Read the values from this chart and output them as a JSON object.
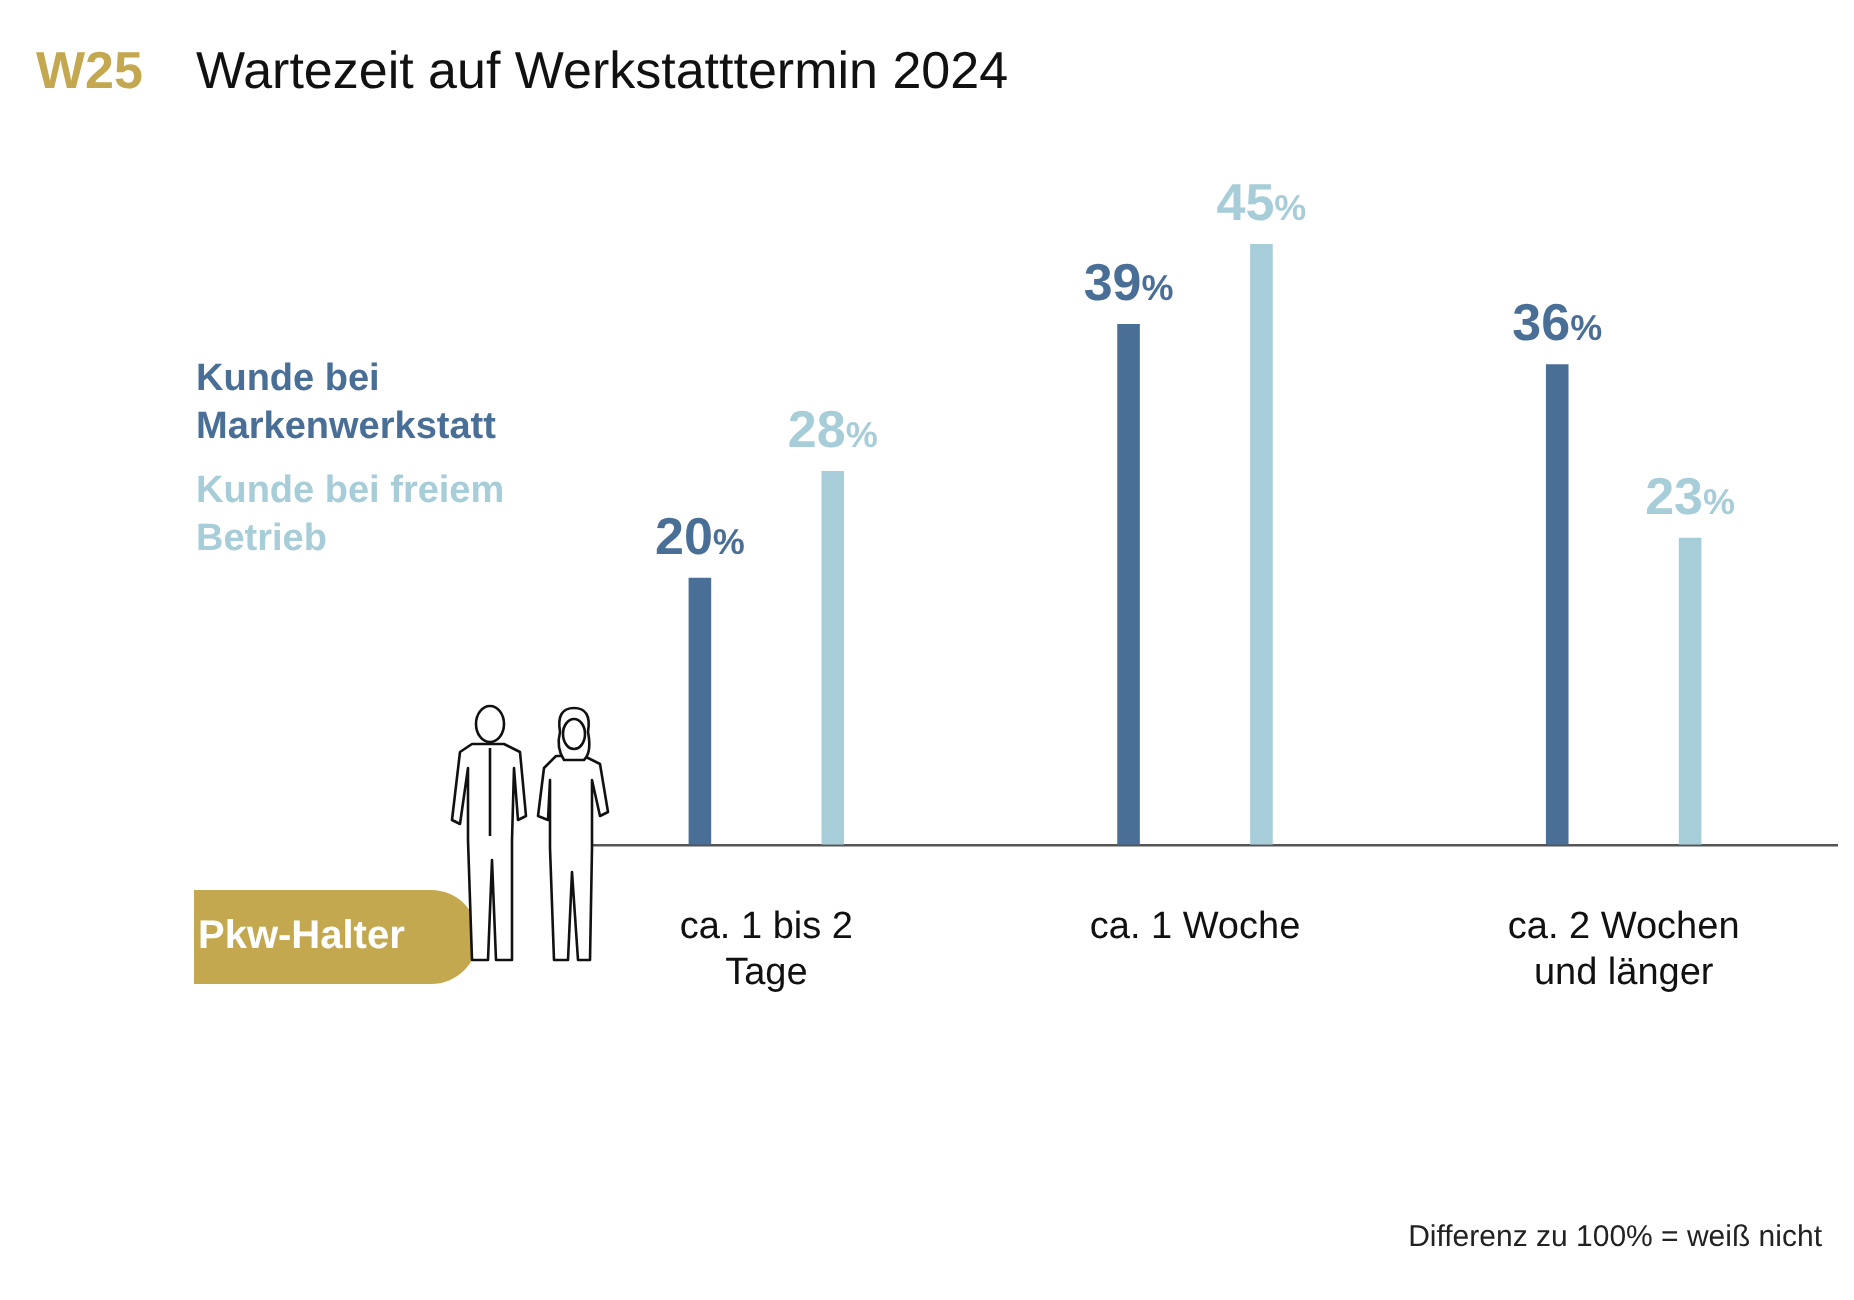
{
  "chart_data": {
    "type": "bar",
    "title": "Wartezeit auf Werkstatttermin 2024",
    "categories": [
      "ca. 1 bis 2 Tage",
      "ca. 1 Woche",
      "ca. 2 Wochen und länger"
    ],
    "series": [
      {
        "name": "Kunde bei Markenwerkstatt",
        "color": "#4a6f96",
        "values": [
          20,
          39,
          36
        ],
        "value_labels": [
          "20%",
          "39%",
          "36%"
        ]
      },
      {
        "name": "Kunde bei freiem Betrieb",
        "color": "#a6cdd8",
        "values": [
          28,
          45,
          23
        ],
        "value_labels": [
          "28%",
          "45%",
          "23%"
        ]
      }
    ],
    "legend": "top left",
    "grid": false,
    "tick_labels": "x",
    "annotations": [
      "W25",
      "Pkw-Halter",
      "Differenz zu 100% = weiß nicht"
    ]
  }
}
